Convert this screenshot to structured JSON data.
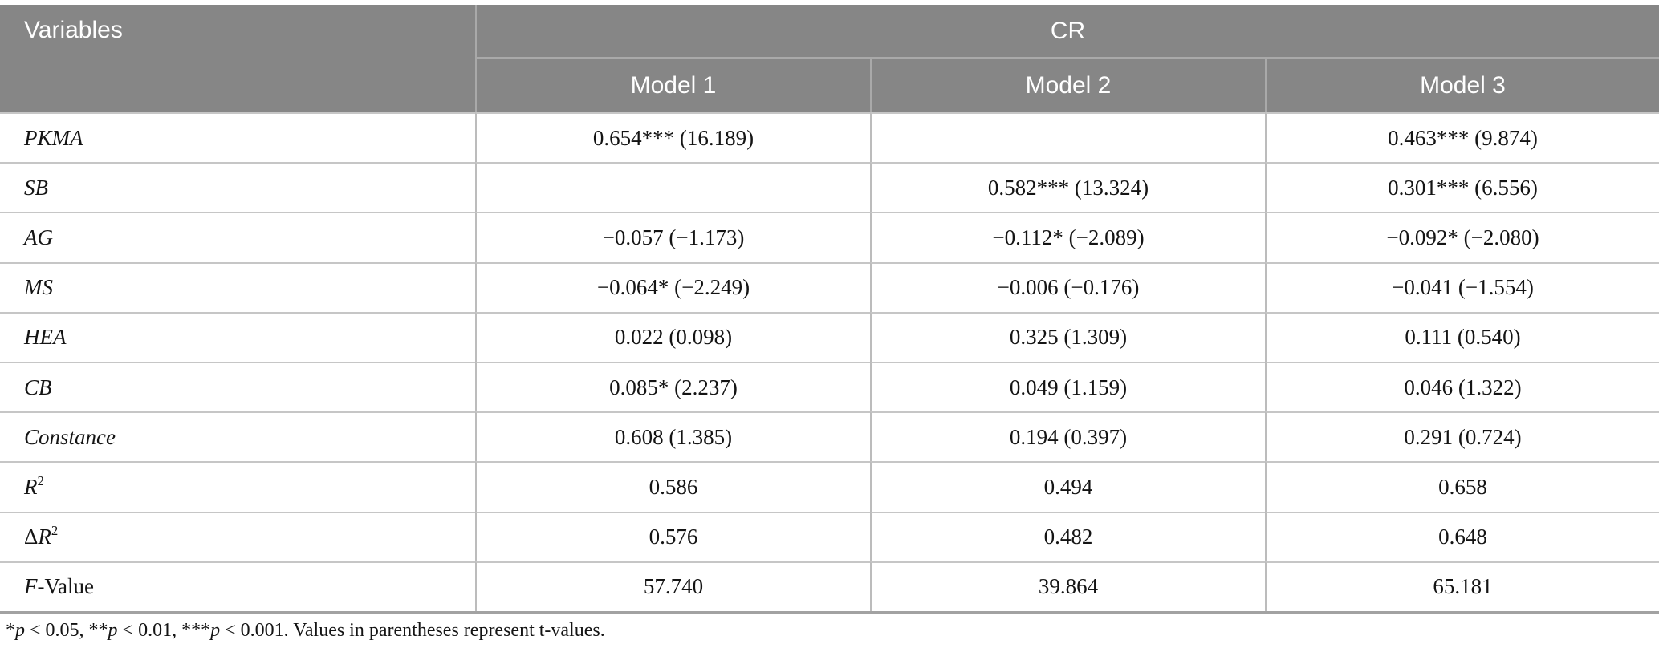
{
  "table": {
    "header": {
      "variables_label": "Variables",
      "group_label": "CR",
      "model_labels": [
        "Model 1",
        "Model 2",
        "Model 3"
      ]
    },
    "rows": [
      {
        "pre": "",
        "it": "PKMA",
        "sup": "",
        "post": "",
        "values": [
          "0.654*** (16.189)",
          "",
          "0.463*** (9.874)"
        ]
      },
      {
        "pre": "",
        "it": "SB",
        "sup": "",
        "post": "",
        "values": [
          "",
          "0.582*** (13.324)",
          "0.301*** (6.556)"
        ]
      },
      {
        "pre": "",
        "it": "AG",
        "sup": "",
        "post": "",
        "values": [
          "−0.057 (−1.173)",
          "−0.112* (−2.089)",
          "−0.092* (−2.080)"
        ]
      },
      {
        "pre": "",
        "it": "MS",
        "sup": "",
        "post": "",
        "values": [
          "−0.064* (−2.249)",
          "−0.006 (−0.176)",
          "−0.041 (−1.554)"
        ]
      },
      {
        "pre": "",
        "it": "HEA",
        "sup": "",
        "post": "",
        "values": [
          "0.022 (0.098)",
          "0.325 (1.309)",
          "0.111 (0.540)"
        ]
      },
      {
        "pre": "",
        "it": "CB",
        "sup": "",
        "post": "",
        "values": [
          "0.085* (2.237)",
          "0.049 (1.159)",
          "0.046 (1.322)"
        ]
      },
      {
        "pre": "",
        "it": "Constance",
        "sup": "",
        "post": "",
        "values": [
          "0.608 (1.385)",
          "0.194 (0.397)",
          "0.291 (0.724)"
        ]
      },
      {
        "pre": "",
        "it": "R",
        "sup": "2",
        "post": "",
        "values": [
          "0.586",
          "0.494",
          "0.658"
        ]
      },
      {
        "pre": "Δ",
        "it": "R",
        "sup": "2",
        "post": "",
        "values": [
          "0.576",
          "0.482",
          "0.648"
        ]
      },
      {
        "pre": "",
        "it": "F",
        "sup": "",
        "post": "-Value",
        "values": [
          "57.740",
          "39.864",
          "65.181"
        ]
      }
    ],
    "footnote_parts": [
      "*",
      "p",
      " < 0.05, **",
      "p",
      " < 0.01, ***",
      "p",
      " < 0.001. Values in parentheses represent t-values."
    ]
  },
  "colors": {
    "header_bg": "#868686",
    "header_text": "#ffffff",
    "grid_line": "#c6c6c6",
    "body_text": "#141414"
  }
}
